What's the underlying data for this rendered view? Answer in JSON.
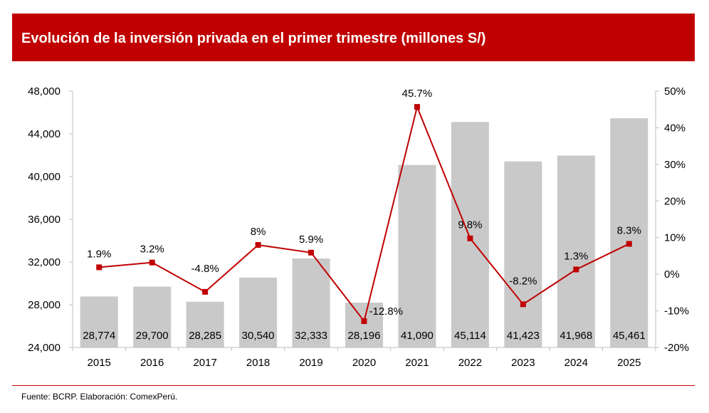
{
  "header": {
    "title": "Evolución de la inversión privada en el primer trimestre (millones S/)"
  },
  "footer": {
    "source": "Fuente: BCRP. Elaboración: ComexPerú."
  },
  "colors": {
    "header_bg": "#c00000",
    "bar": "#c9c9c9",
    "line": "#c00000",
    "axis": "#bfbfbf"
  },
  "chart_data": {
    "type": "bar",
    "title": "",
    "categories": [
      "2015",
      "2016",
      "2017",
      "2018",
      "2019",
      "2020",
      "2021",
      "2022",
      "2023",
      "2024",
      "2025"
    ],
    "series": [
      {
        "type": "bar",
        "axis": "left",
        "values": [
          28774,
          29700,
          28285,
          30540,
          32333,
          28196,
          41090,
          45114,
          41423,
          41968,
          45461
        ],
        "labels": [
          "28,774",
          "29,700",
          "28,285",
          "30,540",
          "32,333",
          "28,196",
          "41,090",
          "45,114",
          "41,423",
          "41,968",
          "45,461"
        ]
      },
      {
        "type": "line",
        "axis": "right",
        "values": [
          1.9,
          3.2,
          -4.8,
          8,
          5.9,
          -12.8,
          45.7,
          9.8,
          -8.2,
          1.3,
          8.3
        ],
        "labels": [
          "1.9%",
          "3.2%",
          "-4.8%",
          "8%",
          "5.9%",
          "-12.8%",
          "45.7%",
          "9.8%",
          "-8.2%",
          "1.3%",
          "8.3%"
        ]
      }
    ],
    "y_left": {
      "min": 24000,
      "max": 48000,
      "ticks": [
        24000,
        28000,
        32000,
        36000,
        40000,
        44000,
        48000
      ],
      "tick_labels": [
        "24,000",
        "28,000",
        "32,000",
        "36,000",
        "40,000",
        "44,000",
        "48,000"
      ]
    },
    "y_right": {
      "min": -20,
      "max": 50,
      "ticks": [
        -20,
        -10,
        0,
        10,
        20,
        30,
        40,
        50
      ],
      "tick_labels": [
        "-20%",
        "-10%",
        "0%",
        "10%",
        "20%",
        "30%",
        "40%",
        "50%"
      ]
    },
    "grid": false,
    "legend": "none"
  }
}
